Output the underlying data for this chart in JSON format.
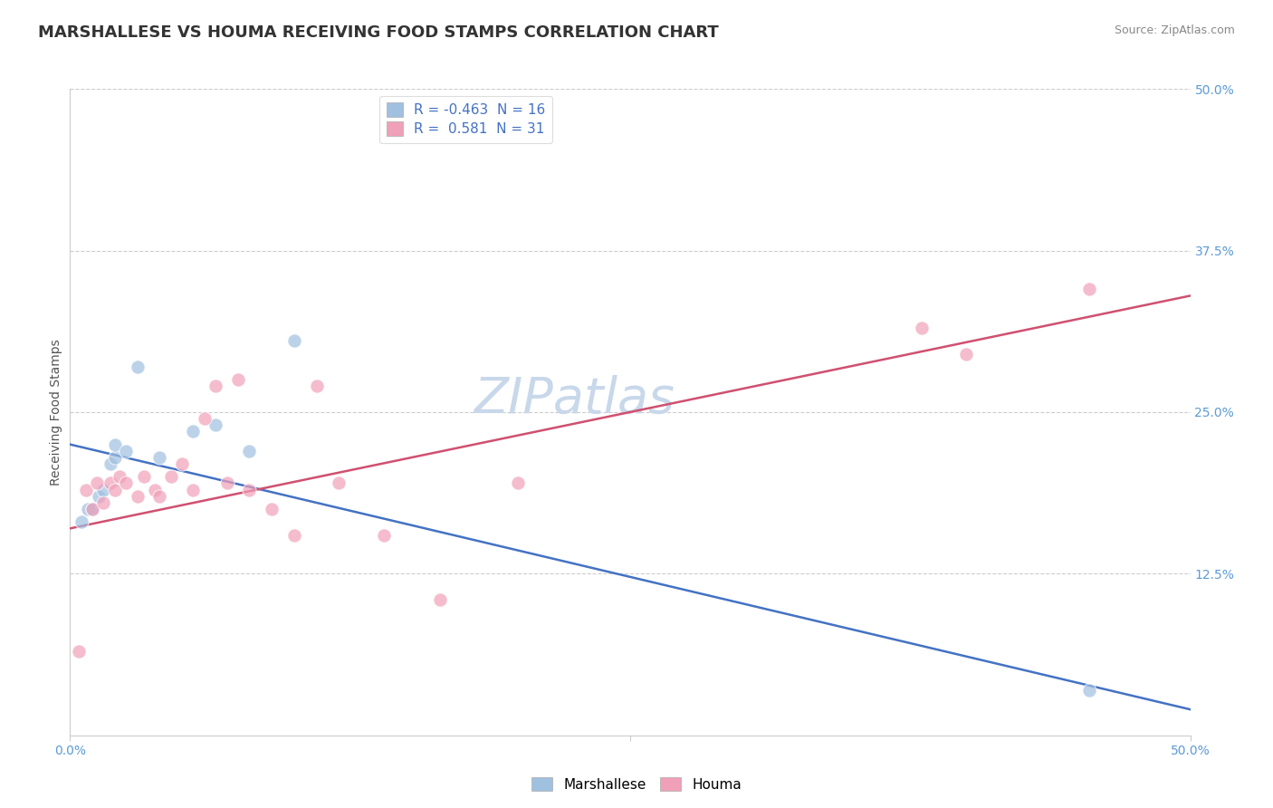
{
  "title": "MARSHALLESE VS HOUMA RECEIVING FOOD STAMPS CORRELATION CHART",
  "source_text": "Source: ZipAtlas.com",
  "ylabel": "Receiving Food Stamps",
  "xlim": [
    0.0,
    0.5
  ],
  "ylim": [
    0.0,
    0.5
  ],
  "xtick_vals": [
    0.0,
    0.25,
    0.5
  ],
  "xtick_labels": [
    "0.0%",
    "",
    "50.0%"
  ],
  "right_ytick_vals": [
    0.125,
    0.25,
    0.375,
    0.5
  ],
  "right_ytick_labels": [
    "12.5%",
    "25.0%",
    "37.5%",
    "50.0%"
  ],
  "hgrid_vals": [
    0.125,
    0.25,
    0.375,
    0.5
  ],
  "watermark": "ZIPatlas",
  "background_color": "#ffffff",
  "plot_bg_color": "#ffffff",
  "grid_color": "#cccccc",
  "marshallese_color": "#a0c0e0",
  "houma_color": "#f0a0b8",
  "marshallese_line_color": "#4472c4",
  "houma_line_color": "#d05070",
  "marshallese_R": -0.463,
  "marshallese_N": 16,
  "houma_R": 0.581,
  "houma_N": 31,
  "marshallese_scatter_x": [
    0.005,
    0.008,
    0.01,
    0.013,
    0.015,
    0.018,
    0.02,
    0.02,
    0.025,
    0.03,
    0.04,
    0.055,
    0.065,
    0.08,
    0.1,
    0.455
  ],
  "marshallese_scatter_y": [
    0.165,
    0.175,
    0.175,
    0.185,
    0.19,
    0.21,
    0.215,
    0.225,
    0.22,
    0.285,
    0.215,
    0.235,
    0.24,
    0.22,
    0.305,
    0.035
  ],
  "houma_scatter_x": [
    0.004,
    0.007,
    0.01,
    0.012,
    0.015,
    0.018,
    0.02,
    0.022,
    0.025,
    0.03,
    0.033,
    0.038,
    0.04,
    0.045,
    0.05,
    0.055,
    0.06,
    0.065,
    0.07,
    0.075,
    0.08,
    0.09,
    0.1,
    0.11,
    0.12,
    0.14,
    0.165,
    0.2,
    0.38,
    0.4,
    0.455
  ],
  "houma_scatter_y": [
    0.065,
    0.19,
    0.175,
    0.195,
    0.18,
    0.195,
    0.19,
    0.2,
    0.195,
    0.185,
    0.2,
    0.19,
    0.185,
    0.2,
    0.21,
    0.19,
    0.245,
    0.27,
    0.195,
    0.275,
    0.19,
    0.175,
    0.155,
    0.27,
    0.195,
    0.155,
    0.105,
    0.195,
    0.315,
    0.295,
    0.345
  ],
  "marshallese_line_x": [
    0.0,
    0.5
  ],
  "marshallese_line_y": [
    0.225,
    0.02
  ],
  "houma_line_x": [
    0.0,
    0.5
  ],
  "houma_line_y": [
    0.16,
    0.34
  ],
  "title_fontsize": 13,
  "axis_label_fontsize": 10,
  "tick_fontsize": 10,
  "legend_fontsize": 11,
  "watermark_fontsize": 40,
  "watermark_color": "#c8d8ea",
  "title_color": "#333333",
  "tick_color": "#5b9bd5",
  "axis_label_color": "#555555",
  "legend_text_color": "#4472c4",
  "source_color": "#888888"
}
